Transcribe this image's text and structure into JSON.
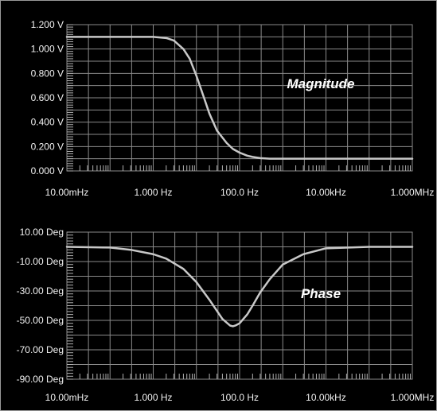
{
  "chart_data": [
    {
      "type": "line",
      "id": "magnitude",
      "x_scale": "log",
      "xlim": [
        0.01,
        1000000
      ],
      "x_ticks": [
        0.01,
        1,
        100,
        10000,
        1000000
      ],
      "x_tick_labels": [
        "10.00mHz",
        "1.000 Hz",
        "100.0 Hz",
        "10.00kHz",
        "1.000MHz"
      ],
      "ylim": [
        0,
        1.2
      ],
      "y_ticks": [
        0,
        0.2,
        0.4,
        0.6,
        0.8,
        1.0,
        1.2
      ],
      "y_tick_labels": [
        "0.000 V",
        "0.200 V",
        "0.400 V",
        "0.600 V",
        "0.800 V",
        "1.000 V",
        "1.200 V"
      ],
      "grid": true,
      "annotation": "Magnitude",
      "color": "#c8c8c8",
      "background": "#000000",
      "grid_color": "#8a8a8a",
      "series": [
        {
          "x": [
            0.01,
            0.1,
            1,
            2,
            3,
            5,
            7,
            10,
            15,
            20,
            30,
            50,
            70,
            100,
            150,
            200,
            300,
            500,
            1000,
            10000,
            100000,
            1000000
          ],
          "y": [
            1.1,
            1.1,
            1.1,
            1.09,
            1.07,
            1.0,
            0.92,
            0.78,
            0.6,
            0.47,
            0.33,
            0.23,
            0.18,
            0.15,
            0.125,
            0.115,
            0.105,
            0.1,
            0.1,
            0.1,
            0.1,
            0.1
          ]
        }
      ]
    },
    {
      "type": "line",
      "id": "phase",
      "x_scale": "log",
      "xlim": [
        0.01,
        1000000
      ],
      "x_ticks": [
        0.01,
        1,
        100,
        10000,
        1000000
      ],
      "x_tick_labels": [
        "10.00mHz",
        "1.000 Hz",
        "100.0 Hz",
        "10.00kHz",
        "1.000MHz"
      ],
      "ylim": [
        -90,
        10
      ],
      "y_ticks": [
        10,
        -10,
        -30,
        -50,
        -70,
        -90
      ],
      "y_tick_labels": [
        "10.00 Deg",
        "-10.00 Deg",
        "-30.00 Deg",
        "-50.00 Deg",
        "-70.00 Deg",
        "-90.00 Deg"
      ],
      "grid": true,
      "annotation": "Phase",
      "color": "#c8c8c8",
      "background": "#000000",
      "grid_color": "#8a8a8a",
      "series": [
        {
          "x": [
            0.01,
            0.1,
            0.3,
            1,
            2,
            5,
            10,
            20,
            40,
            60,
            70,
            80,
            100,
            150,
            200,
            300,
            500,
            1000,
            3000,
            10000,
            100000,
            1000000
          ],
          "y": [
            0,
            -0.5,
            -2,
            -5,
            -8,
            -15,
            -24,
            -36,
            -49,
            -53.5,
            -54,
            -53.5,
            -52,
            -46,
            -40,
            -31,
            -22,
            -12,
            -5,
            -1,
            0,
            0
          ]
        }
      ]
    }
  ]
}
